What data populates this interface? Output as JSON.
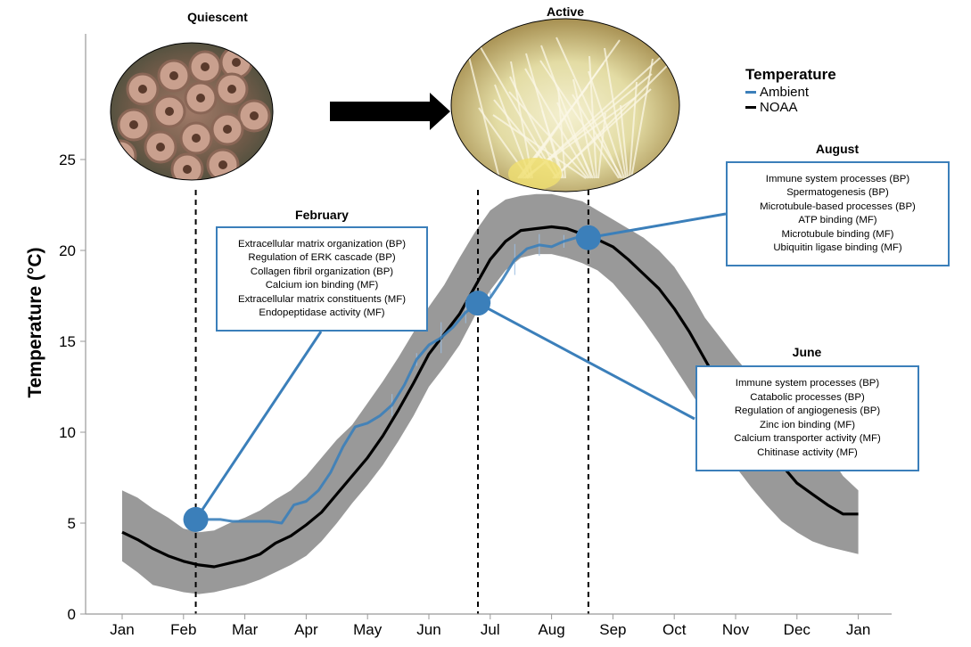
{
  "chart_data": {
    "type": "line",
    "ylabel": "Temperature (°C)",
    "xlabel": "",
    "ylim": [
      0,
      30
    ],
    "y_ticks": [
      0,
      5,
      10,
      15,
      20,
      25
    ],
    "x_ticks": [
      "Jan",
      "Feb",
      "Mar",
      "Apr",
      "May",
      "Jun",
      "Jul",
      "Aug",
      "Sep",
      "Oct",
      "Nov",
      "Dec",
      "Jan"
    ],
    "legend": {
      "title": "Temperature",
      "position": "top-right",
      "entries": [
        "Ambient",
        "NOAA"
      ]
    },
    "colors": {
      "ambient": "#3b7fba",
      "noaa": "#000000",
      "band": "#999999",
      "panel_border": "#3b7fba"
    },
    "series": [
      {
        "name": "NOAA",
        "x": [
          0,
          0.25,
          0.5,
          0.75,
          1,
          1.25,
          1.5,
          1.75,
          2,
          2.25,
          2.5,
          2.75,
          3,
          3.25,
          3.5,
          3.75,
          4,
          4.25,
          4.5,
          4.75,
          5,
          5.25,
          5.5,
          5.75,
          6,
          6.25,
          6.5,
          6.75,
          7,
          7.25,
          7.5,
          7.75,
          8,
          8.25,
          8.5,
          8.75,
          9,
          9.25,
          9.5,
          9.75,
          10,
          10.25,
          10.5,
          10.75,
          11,
          11.25,
          11.5,
          11.75,
          12
        ],
        "values": [
          4.5,
          4.1,
          3.6,
          3.2,
          2.9,
          2.7,
          2.6,
          2.8,
          3.0,
          3.3,
          3.9,
          4.3,
          4.9,
          5.6,
          6.6,
          7.6,
          8.6,
          9.8,
          11.2,
          12.7,
          14.3,
          15.4,
          16.5,
          18.0,
          19.5,
          20.5,
          21.1,
          21.2,
          21.3,
          21.2,
          20.9,
          20.6,
          20.2,
          19.5,
          18.7,
          17.9,
          16.8,
          15.5,
          14.0,
          12.5,
          11.0,
          10.0,
          9.3,
          8.2,
          7.2,
          6.6,
          6.0,
          5.5,
          5.5
        ],
        "upper": [
          6.8,
          6.4,
          5.8,
          5.3,
          4.7,
          4.5,
          4.6,
          5.0,
          5.3,
          5.7,
          6.3,
          6.8,
          7.6,
          8.6,
          9.6,
          10.4,
          11.6,
          12.8,
          14.1,
          15.5,
          16.9,
          18.1,
          19.6,
          21.0,
          22.2,
          22.8,
          23.0,
          23.1,
          23.1,
          22.9,
          22.7,
          22.2,
          21.7,
          21.2,
          20.7,
          20.0,
          19.1,
          17.8,
          16.3,
          15.2,
          14.1,
          13.1,
          12.2,
          11.3,
          10.4,
          9.6,
          8.9,
          7.6,
          6.8
        ],
        "lower": [
          2.9,
          2.3,
          1.6,
          1.4,
          1.2,
          1.1,
          1.2,
          1.4,
          1.6,
          1.9,
          2.3,
          2.7,
          3.2,
          4.0,
          5.0,
          6.1,
          7.1,
          8.2,
          9.5,
          10.9,
          12.5,
          13.6,
          14.8,
          16.4,
          17.8,
          18.9,
          19.6,
          19.8,
          19.8,
          19.6,
          19.3,
          18.9,
          18.2,
          17.2,
          16.1,
          14.9,
          13.6,
          12.3,
          11.0,
          9.6,
          8.1,
          7.0,
          6.0,
          5.1,
          4.5,
          4.0,
          3.7,
          3.5,
          3.3
        ]
      },
      {
        "name": "Ambient",
        "x": [
          1.2,
          1.4,
          1.6,
          1.8,
          2.0,
          2.2,
          2.4,
          2.6,
          2.8,
          3.0,
          3.2,
          3.4,
          3.6,
          3.8,
          4.0,
          4.2,
          4.4,
          4.6,
          4.8,
          5.0,
          5.2,
          5.4,
          5.6,
          5.8,
          6.0,
          6.2,
          6.4,
          6.6,
          6.8,
          7.0,
          7.2,
          7.4,
          7.6
        ],
        "values": [
          5.2,
          5.2,
          5.2,
          5.1,
          5.1,
          5.1,
          5.1,
          5.0,
          6.0,
          6.2,
          6.8,
          7.8,
          9.2,
          10.3,
          10.5,
          10.9,
          11.5,
          12.6,
          14.0,
          14.8,
          15.2,
          15.8,
          16.6,
          17.1,
          17.4,
          18.4,
          19.5,
          20.1,
          20.3,
          20.2,
          20.5,
          20.7,
          20.7
        ]
      }
    ],
    "annotations": [
      {
        "label": "February",
        "x": 1.2,
        "y": 5.2,
        "items": [
          "Extracellular matrix organization (BP)",
          "Regulation of ERK cascade (BP)",
          "Collagen fibril organization (BP)",
          "Calcium ion binding (MF)",
          "Extracellular matrix constituents (MF)",
          "Endopeptidase activity (MF)"
        ]
      },
      {
        "label": "June",
        "x": 5.8,
        "y": 17.1,
        "items": [
          "Immune system processes (BP)",
          "Catabolic processes (BP)",
          "Regulation of angiogenesis (BP)",
          "Zinc ion binding (MF)",
          "Calcium transporter activity (MF)",
          "Chitinase activity (MF)"
        ]
      },
      {
        "label": "August",
        "x": 7.6,
        "y": 20.7,
        "items": [
          "Immune system processes (BP)",
          "Spermatogenesis (BP)",
          "Microtubule-based processes (BP)",
          "ATP binding (MF)",
          "Microtubule binding (MF)",
          "Ubiquitin ligase binding (MF)"
        ]
      }
    ],
    "vlines": [
      1.2,
      5.8,
      7.6
    ],
    "photos": [
      {
        "title": "Quiescent"
      },
      {
        "title": "Active"
      }
    ]
  }
}
